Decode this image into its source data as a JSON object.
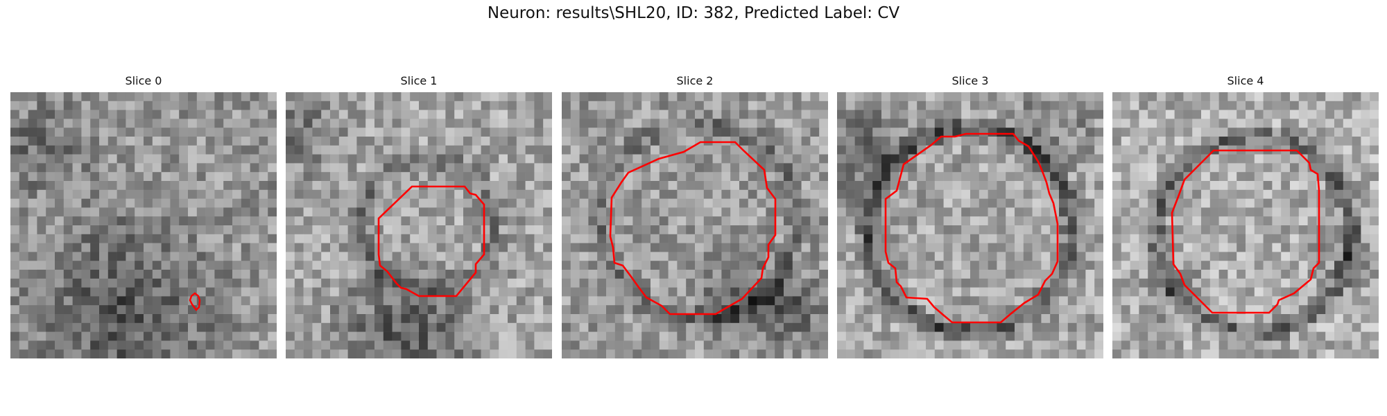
{
  "figure": {
    "title": "Neuron: results\\SHL20, ID: 382, Predicted Label: CV",
    "contour_color": "#ff0000",
    "colormap": "grayscale",
    "panels": [
      {
        "title": "Slice 0"
      },
      {
        "title": "Slice 1"
      },
      {
        "title": "Slice 2"
      },
      {
        "title": "Slice 3"
      },
      {
        "title": "Slice 4"
      }
    ]
  }
}
